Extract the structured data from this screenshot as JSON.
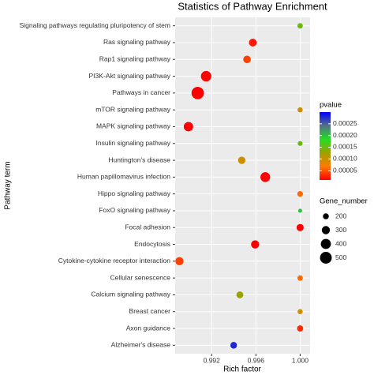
{
  "chart_data": {
    "type": "bubble",
    "title": "Statistics of Pathway Enrichment",
    "x_label": "Rich factor",
    "y_label": "Pathway term",
    "categories": [
      "Signaling pathways regulating pluripotency of stem",
      "Ras signaling pathway",
      "Rap1 signaling pathway",
      "PI3K-Akt signaling pathway",
      "Pathways in cancer",
      "mTOR signaling pathway",
      "MAPK signaling pathway",
      "Insulin signaling pathway",
      "Huntington's disease",
      "Human papillomavirus infection",
      "Hippo signaling pathway",
      "FoxO signaling pathway",
      "Focal adhesion",
      "Endocytosis",
      "Cytokine-cytokine receptor interaction",
      "Cellular senescence",
      "Calcium signaling pathway",
      "Breast cancer",
      "Axon guidance",
      "Alzheimer's disease"
    ],
    "x": [
      1.0,
      0.99572,
      0.9952,
      0.9915,
      0.99074,
      1.0,
      0.9899,
      1.0,
      0.99472,
      0.99685,
      1.0,
      1.0,
      1.0,
      0.99593,
      0.98909,
      1.0,
      0.99455,
      1.0,
      1.0,
      0.99399
    ],
    "pvalue": [
      0.00015,
      2e-05,
      4e-05,
      1e-05,
      1e-05,
      0.0001,
      1e-05,
      0.00015,
      0.0001,
      1e-05,
      6e-05,
      0.0002,
      1e-05,
      1e-05,
      4e-05,
      6e-05,
      0.00013,
      0.0001,
      3e-05,
      0.00028
    ],
    "gene_number": [
      180,
      280,
      270,
      420,
      540,
      170,
      360,
      160,
      260,
      380,
      190,
      130,
      250,
      300,
      300,
      180,
      240,
      170,
      210,
      230
    ],
    "xlim": [
      0.9887,
      1.0009
    ],
    "xticks": [
      0.992,
      0.996,
      {
        "value": 1.0,
        "label": "1.000"
      }
    ],
    "color_legend_title": "pvalue",
    "clim": [
      1e-05,
      0.0003
    ],
    "colorbar_colors": [
      "#ff0000",
      "#ff7a00",
      "#a0a000",
      "#22dd22",
      "#557088",
      "#0000ff"
    ],
    "cticks": [
      0.00025,
      {
        "value": 0.0002,
        "label": "0.00020"
      },
      0.00015,
      {
        "value": 0.0001,
        "label": "0.00010"
      },
      5e-05
    ],
    "size_legend_title": "Gene_number",
    "size_legend": [
      200,
      300,
      400,
      500
    ],
    "grid": true
  }
}
